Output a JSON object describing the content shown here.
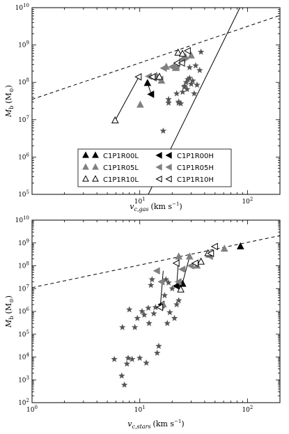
{
  "chart_data": [
    {
      "type": "scatter",
      "panel": "top",
      "xlabel": "v_c,gas (km s^-1)",
      "xlabel_main": "v",
      "xlabel_sub": "c,gas",
      "xlabel_unit": "(km s",
      "xlabel_unit_sup": "−1",
      "xlabel_unit_end": ")",
      "ylabel": "M_b (M_sun)",
      "ylabel_main": "M",
      "ylabel_sub": "b",
      "ylabel_unit": "(M",
      "ylabel_unit_end": ")",
      "xscale": "log",
      "yscale": "log",
      "xlim": [
        1,
        200
      ],
      "ylim": [
        100000,
        10000000000
      ],
      "xticks": [
        {
          "base": "10",
          "exp": "1",
          "value": 10
        },
        {
          "base": "10",
          "exp": "2",
          "value": 100
        }
      ],
      "yticks": [
        {
          "base": "10",
          "exp": "5",
          "value": 100000
        },
        {
          "base": "10",
          "exp": "6",
          "value": 1000000
        },
        {
          "base": "10",
          "exp": "7",
          "value": 10000000
        },
        {
          "base": "10",
          "exp": "8",
          "value": 100000000
        },
        {
          "base": "10",
          "exp": "9",
          "value": 1000000000
        },
        {
          "base": "10",
          "exp": "10",
          "value": 10000000000
        }
      ],
      "stars": {
        "color": "#555555",
        "points": [
          [
            16.5,
            5000000
          ],
          [
            18.5,
            28000000
          ],
          [
            18.5,
            35000000
          ],
          [
            22,
            50000000
          ],
          [
            23,
            30000000
          ],
          [
            24,
            27000000
          ],
          [
            25,
            55000000
          ],
          [
            26,
            75000000
          ],
          [
            27,
            100000000
          ],
          [
            27.5,
            65000000
          ],
          [
            28,
            120000000
          ],
          [
            29,
            130000000
          ],
          [
            29,
            250000000
          ],
          [
            30,
            90000000
          ],
          [
            31,
            110000000
          ],
          [
            32,
            50000000
          ],
          [
            33,
            280000000
          ],
          [
            34,
            85000000
          ],
          [
            36,
            210000000
          ],
          [
            37,
            650000000
          ],
          [
            23,
            28000000
          ],
          [
            26,
            80000000
          ]
        ]
      },
      "series": [
        {
          "name": "C1P1R00L",
          "marker": "triangle-up",
          "fill": "#000000",
          "stroke": "#000000",
          "points": [
            [
              11.8,
              95000000
            ]
          ]
        },
        {
          "name": "C1P1R00H",
          "marker": "triangle-left",
          "fill": "#000000",
          "stroke": "#000000",
          "points": [
            [
              12.8,
              48000000
            ]
          ]
        },
        {
          "name": "C1P1R05L",
          "marker": "triangle-up",
          "fill": "#808080",
          "stroke": "#808080",
          "points": [
            [
              10.1,
              25000000
            ],
            [
              14.3,
              150000000
            ],
            [
              15.9,
              110000000
            ],
            [
              17.6,
              260000000
            ],
            [
              21.5,
              240000000
            ],
            [
              25.5,
              450000000
            ],
            [
              26.5,
              480000000
            ],
            [
              30,
              520000000
            ]
          ]
        },
        {
          "name": "C1P1R05H",
          "marker": "triangle-left",
          "fill": "#808080",
          "stroke": "#808080",
          "points": [
            [
              12.2,
              145000000
            ],
            [
              13.6,
              130000000
            ],
            [
              15.6,
              120000000
            ],
            [
              16.8,
              240000000
            ],
            [
              20,
              260000000
            ],
            [
              22,
              250000000
            ],
            [
              25,
              420000000
            ]
          ]
        },
        {
          "name": "C1P1R10L",
          "marker": "triangle-up",
          "fill": "#ffffff",
          "stroke": "#000000",
          "points": [
            [
              5.9,
              9500000
            ],
            [
              15.2,
              140000000
            ],
            [
              22.7,
              620000000
            ],
            [
              24.9,
              580000000
            ]
          ]
        },
        {
          "name": "C1P1R10H",
          "marker": "triangle-left",
          "fill": "#ffffff",
          "stroke": "#000000",
          "points": [
            [
              9.8,
              140000000
            ],
            [
              13.2,
              140000000
            ],
            [
              22.3,
              330000000
            ],
            [
              24.7,
              330000000
            ],
            [
              28,
              700000000
            ]
          ]
        }
      ],
      "connectors": [
        {
          "color": "#000000",
          "points": [
            [
              5.9,
              9500000
            ],
            [
              9.8,
              140000000
            ]
          ]
        },
        {
          "color": "#000000",
          "points": [
            [
              11.8,
              95000000
            ],
            [
              12.8,
              48000000
            ]
          ]
        }
      ],
      "lines": [
        {
          "style": "dashed",
          "points": [
            [
              1,
              35000000
            ],
            [
              200,
              6200000000
            ]
          ]
        },
        {
          "style": "solid",
          "points": [
            [
              12,
              100000
            ],
            [
              85,
              10000000000
            ]
          ]
        }
      ],
      "legend_placement": "lower-center",
      "legend_entries": [
        {
          "name": "C1P1R00L",
          "marker": "triangle-up",
          "fill": "#000000",
          "stroke": "#000000"
        },
        {
          "name": "C1P1R00H",
          "marker": "triangle-left",
          "fill": "#000000",
          "stroke": "#000000"
        },
        {
          "name": "C1P1R05L",
          "marker": "triangle-up",
          "fill": "#808080",
          "stroke": "#808080"
        },
        {
          "name": "C1P1R05H",
          "marker": "triangle-left",
          "fill": "#808080",
          "stroke": "#808080"
        },
        {
          "name": "C1P1R10L",
          "marker": "triangle-up",
          "fill": "#ffffff",
          "stroke": "#000000"
        },
        {
          "name": "C1P1R10H",
          "marker": "triangle-left",
          "fill": "#ffffff",
          "stroke": "#000000"
        }
      ]
    },
    {
      "type": "scatter",
      "panel": "bottom",
      "xlabel": "v_c,stars (km s^-1)",
      "xlabel_main": "v",
      "xlabel_sub": "c,stars",
      "xlabel_unit": "(km s",
      "xlabel_unit_sup": "−1",
      "xlabel_unit_end": ")",
      "ylabel": "M_b (M_sun)",
      "ylabel_main": "M",
      "ylabel_sub": "b",
      "ylabel_unit": "(M",
      "ylabel_unit_end": ")",
      "xscale": "log",
      "yscale": "log",
      "xlim": [
        1,
        200
      ],
      "ylim": [
        100,
        10000000000
      ],
      "xticks": [
        {
          "base": "10",
          "exp": "0",
          "value": 1
        },
        {
          "base": "10",
          "exp": "1",
          "value": 10
        },
        {
          "base": "10",
          "exp": "2",
          "value": 100
        }
      ],
      "yticks": [
        {
          "base": "10",
          "exp": "2",
          "value": 100
        },
        {
          "base": "10",
          "exp": "3",
          "value": 1000
        },
        {
          "base": "10",
          "exp": "4",
          "value": 10000
        },
        {
          "base": "10",
          "exp": "5",
          "value": 100000
        },
        {
          "base": "10",
          "exp": "6",
          "value": 1000000
        },
        {
          "base": "10",
          "exp": "7",
          "value": 10000000
        },
        {
          "base": "10",
          "exp": "8",
          "value": 100000000
        },
        {
          "base": "10",
          "exp": "9",
          "value": 1000000000
        },
        {
          "base": "10",
          "exp": "10",
          "value": 10000000000
        }
      ],
      "stars": {
        "color": "#555555",
        "points": [
          [
            5.8,
            8000
          ],
          [
            6.8,
            1500
          ],
          [
            6.9,
            200000
          ],
          [
            7.2,
            600
          ],
          [
            7.6,
            5000
          ],
          [
            7.8,
            9000
          ],
          [
            8,
            1200000
          ],
          [
            8.5,
            8000
          ],
          [
            9,
            200000
          ],
          [
            9.5,
            500000
          ],
          [
            10,
            9000
          ],
          [
            10.5,
            1000000
          ],
          [
            11,
            700000
          ],
          [
            11.5,
            5500
          ],
          [
            12,
            1400000
          ],
          [
            12.2,
            300000
          ],
          [
            12.7,
            14000000
          ],
          [
            13,
            25000000
          ],
          [
            13.5,
            800000
          ],
          [
            14,
            1500000
          ],
          [
            14.5,
            15000
          ],
          [
            15,
            30000
          ],
          [
            16,
            1600000
          ],
          [
            17,
            5000000
          ],
          [
            17.5,
            25000000
          ],
          [
            18,
            300000
          ],
          [
            18.5,
            18000000
          ],
          [
            19,
            900000
          ],
          [
            20,
            10000000
          ],
          [
            21,
            500000
          ],
          [
            22,
            2000000
          ],
          [
            23,
            3000000
          ]
        ]
      },
      "series": [
        {
          "name": "C1P1R00L",
          "marker": "triangle-up",
          "fill": "#000000",
          "stroke": "#000000",
          "points": [
            [
              25,
              16000000
            ],
            [
              86,
              700000000
            ]
          ]
        },
        {
          "name": "C1P1R00H",
          "marker": "triangle-left",
          "fill": "#000000",
          "stroke": "#000000",
          "points": [
            [
              22,
              13000000
            ],
            [
              16,
              2000000
            ]
          ]
        },
        {
          "name": "C1P1R05L",
          "marker": "triangle-up",
          "fill": "#808080",
          "stroke": "#808080",
          "points": [
            [
              16.5,
              2000000
            ],
            [
              23,
              250000000
            ],
            [
              29,
              250000000
            ],
            [
              34,
              100000000
            ],
            [
              44,
              300000000
            ],
            [
              61,
              550000000
            ]
          ]
        },
        {
          "name": "C1P1R05H",
          "marker": "triangle-left",
          "fill": "#808080",
          "stroke": "#808080",
          "points": [
            [
              14.5,
              60000000
            ],
            [
              16,
              20000000
            ],
            [
              23,
              20000000
            ],
            [
              25,
              70000000
            ],
            [
              30,
              100000000
            ],
            [
              45,
              260000000
            ]
          ]
        },
        {
          "name": "C1P1R10L",
          "marker": "triangle-up",
          "fill": "#ffffff",
          "stroke": "#000000",
          "points": [
            [
              24,
              9000000
            ],
            [
              37,
              150000000
            ],
            [
              43,
              350000000
            ]
          ]
        },
        {
          "name": "C1P1R10H",
          "marker": "triangle-left",
          "fill": "#ffffff",
          "stroke": "#000000",
          "points": [
            [
              15.5,
              1500000
            ],
            [
              22,
              130000000
            ],
            [
              33,
              130000000
            ],
            [
              46,
              350000000
            ],
            [
              50,
              700000000
            ]
          ]
        }
      ],
      "connectors": [
        {
          "color": "#000000",
          "points": [
            [
              15.5,
              1500000
            ],
            [
              16.5,
              60000000
            ]
          ]
        },
        {
          "color": "#000000",
          "points": [
            [
              22,
              13000000
            ],
            [
              23,
              250000000
            ]
          ]
        },
        {
          "color": "#000000",
          "points": [
            [
              24,
              9000000
            ],
            [
              29,
              250000000
            ]
          ]
        }
      ],
      "lines": [
        {
          "style": "dashed",
          "points": [
            [
              1,
              11000000
            ],
            [
              200,
              2100000000
            ]
          ]
        }
      ]
    }
  ]
}
